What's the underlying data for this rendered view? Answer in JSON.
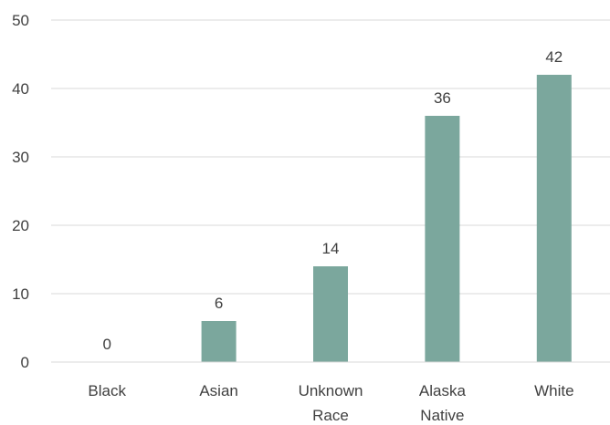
{
  "chart_data": {
    "type": "bar",
    "title": "",
    "xlabel": "",
    "ylabel": "",
    "categories": [
      [
        "Black"
      ],
      [
        "Asian"
      ],
      [
        "Unknown",
        "Race"
      ],
      [
        "Alaska",
        "Native"
      ],
      [
        "White"
      ]
    ],
    "values": [
      0,
      6,
      14,
      36,
      42
    ],
    "ylim": [
      0,
      50
    ],
    "yticks": [
      0,
      10,
      20,
      30,
      40,
      50
    ],
    "grid": true,
    "legend": "none",
    "bar_color": "#7ba79d",
    "data_labels": true
  }
}
